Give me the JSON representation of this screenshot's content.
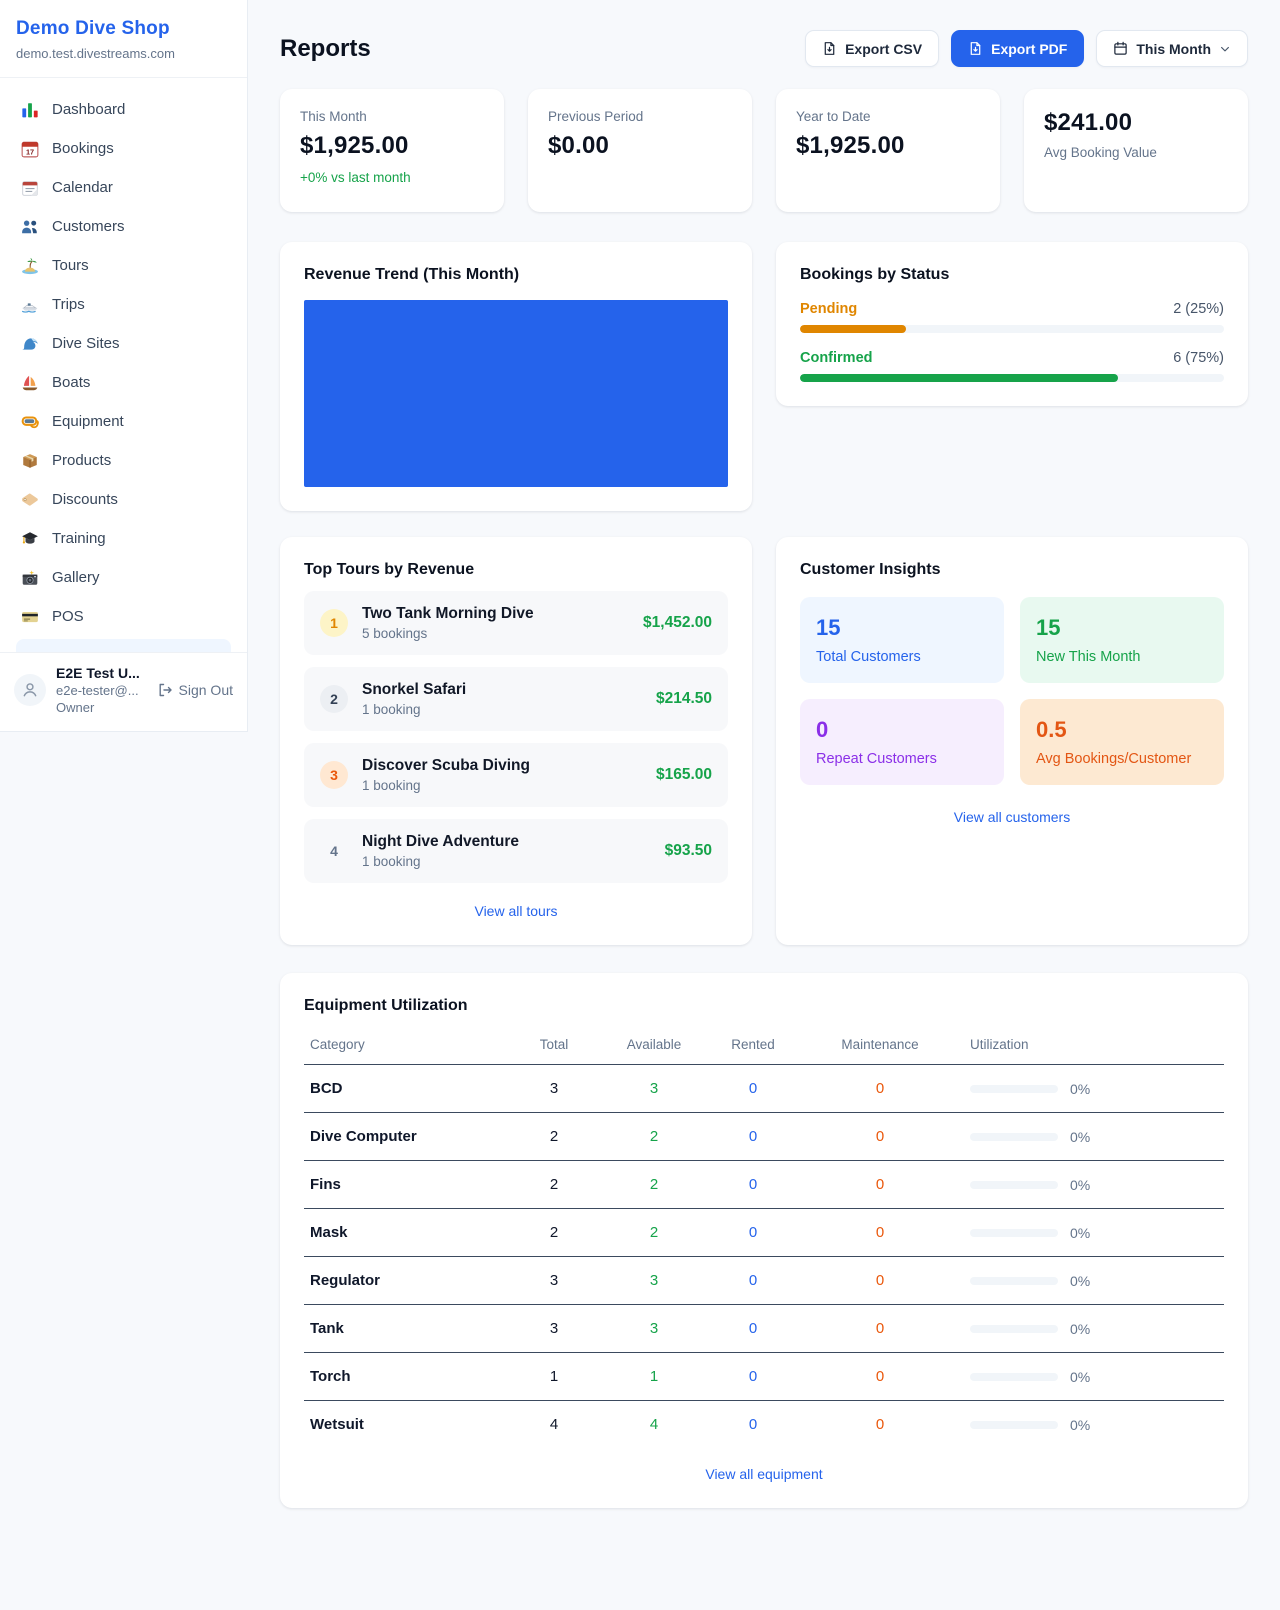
{
  "colors": {
    "accent_blue": "#2563eb",
    "revenue_bar": "#2563eb",
    "pending_orange": "#e08600",
    "confirmed_green": "#16a34a"
  },
  "sidebar": {
    "brand": {
      "name": "Demo Dive Shop",
      "domain": "demo.test.divestreams.com"
    },
    "items": [
      {
        "label": "Dashboard",
        "icon": "bar-chart-icon"
      },
      {
        "label": "Bookings",
        "icon": "calendar-date-icon"
      },
      {
        "label": "Calendar",
        "icon": "tear-off-calendar-icon"
      },
      {
        "label": "Customers",
        "icon": "people-icon"
      },
      {
        "label": "Tours",
        "icon": "island-icon"
      },
      {
        "label": "Trips",
        "icon": "speedboat-icon"
      },
      {
        "label": "Dive Sites",
        "icon": "wave-icon"
      },
      {
        "label": "Boats",
        "icon": "sailboat-icon"
      },
      {
        "label": "Equipment",
        "icon": "diving-mask-icon"
      },
      {
        "label": "Products",
        "icon": "package-icon"
      },
      {
        "label": "Discounts",
        "icon": "tag-icon"
      },
      {
        "label": "Training",
        "icon": "graduation-cap-icon"
      },
      {
        "label": "Gallery",
        "icon": "camera-icon"
      },
      {
        "label": "POS",
        "icon": "credit-card-icon"
      }
    ],
    "user": {
      "name": "E2E Test U...",
      "email": "e2e-tester@...",
      "role": "Owner",
      "sign_out": "Sign Out"
    }
  },
  "header": {
    "title": "Reports",
    "export_csv": "Export CSV",
    "export_pdf": "Export PDF",
    "period": "This Month"
  },
  "stats": {
    "cards": [
      {
        "label": "This Month",
        "value": "$1,925.00",
        "delta": "+0% vs last month"
      },
      {
        "label": "Previous Period",
        "value": "$0.00"
      },
      {
        "label": "Year to Date",
        "value": "$1,925.00"
      },
      {
        "label": "Avg Booking Value",
        "value": "$241.00"
      }
    ]
  },
  "revenue_trend": {
    "title": "Revenue Trend (This Month)"
  },
  "bookings_by_status": {
    "title": "Bookings by Status",
    "rows": [
      {
        "label": "Pending",
        "value": "2 (25%)",
        "percent": 25
      },
      {
        "label": "Confirmed",
        "value": "6 (75%)",
        "percent": 75
      }
    ]
  },
  "top_tours": {
    "title": "Top Tours by Revenue",
    "link": "View all tours",
    "items": [
      {
        "rank": "1",
        "name": "Two Tank Morning Dive",
        "bookings": "5 bookings",
        "revenue": "$1,452.00"
      },
      {
        "rank": "2",
        "name": "Snorkel Safari",
        "bookings": "1 booking",
        "revenue": "$214.50"
      },
      {
        "rank": "3",
        "name": "Discover Scuba Diving",
        "bookings": "1 booking",
        "revenue": "$165.00"
      },
      {
        "rank": "4",
        "name": "Night Dive Adventure",
        "bookings": "1 booking",
        "revenue": "$93.50"
      }
    ]
  },
  "customer_insights": {
    "title": "Customer Insights",
    "link": "View all customers",
    "tiles": [
      {
        "value": "15",
        "label": "Total Customers"
      },
      {
        "value": "15",
        "label": "New This Month"
      },
      {
        "value": "0",
        "label": "Repeat Customers"
      },
      {
        "value": "0.5",
        "label": "Avg Bookings/Customer"
      }
    ]
  },
  "equipment": {
    "title": "Equipment Utilization",
    "link": "View all equipment",
    "columns": [
      "Category",
      "Total",
      "Available",
      "Rented",
      "Maintenance",
      "Utilization"
    ],
    "rows": [
      {
        "category": "BCD",
        "total": "3",
        "available": "3",
        "rented": "0",
        "maintenance": "0",
        "utilization": "0%"
      },
      {
        "category": "Dive Computer",
        "total": "2",
        "available": "2",
        "rented": "0",
        "maintenance": "0",
        "utilization": "0%"
      },
      {
        "category": "Fins",
        "total": "2",
        "available": "2",
        "rented": "0",
        "maintenance": "0",
        "utilization": "0%"
      },
      {
        "category": "Mask",
        "total": "2",
        "available": "2",
        "rented": "0",
        "maintenance": "0",
        "utilization": "0%"
      },
      {
        "category": "Regulator",
        "total": "3",
        "available": "3",
        "rented": "0",
        "maintenance": "0",
        "utilization": "0%"
      },
      {
        "category": "Tank",
        "total": "3",
        "available": "3",
        "rented": "0",
        "maintenance": "0",
        "utilization": "0%"
      },
      {
        "category": "Torch",
        "total": "1",
        "available": "1",
        "rented": "0",
        "maintenance": "0",
        "utilization": "0%"
      },
      {
        "category": "Wetsuit",
        "total": "4",
        "available": "4",
        "rented": "0",
        "maintenance": "0",
        "utilization": "0%"
      }
    ]
  }
}
